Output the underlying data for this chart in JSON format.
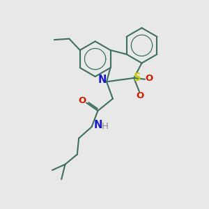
{
  "bg_color": "#e8e8e8",
  "bond_color": "#3d7060",
  "bond_width": 1.5,
  "N_color": "#1818cc",
  "S_color": "#cccc00",
  "O_color": "#cc2200",
  "H_color": "#888888",
  "label_fontsize": 9.5,
  "fig_w": 3.0,
  "fig_h": 3.0,
  "dpi": 100,
  "xlim": [
    0,
    10
  ],
  "ylim": [
    0,
    10
  ]
}
